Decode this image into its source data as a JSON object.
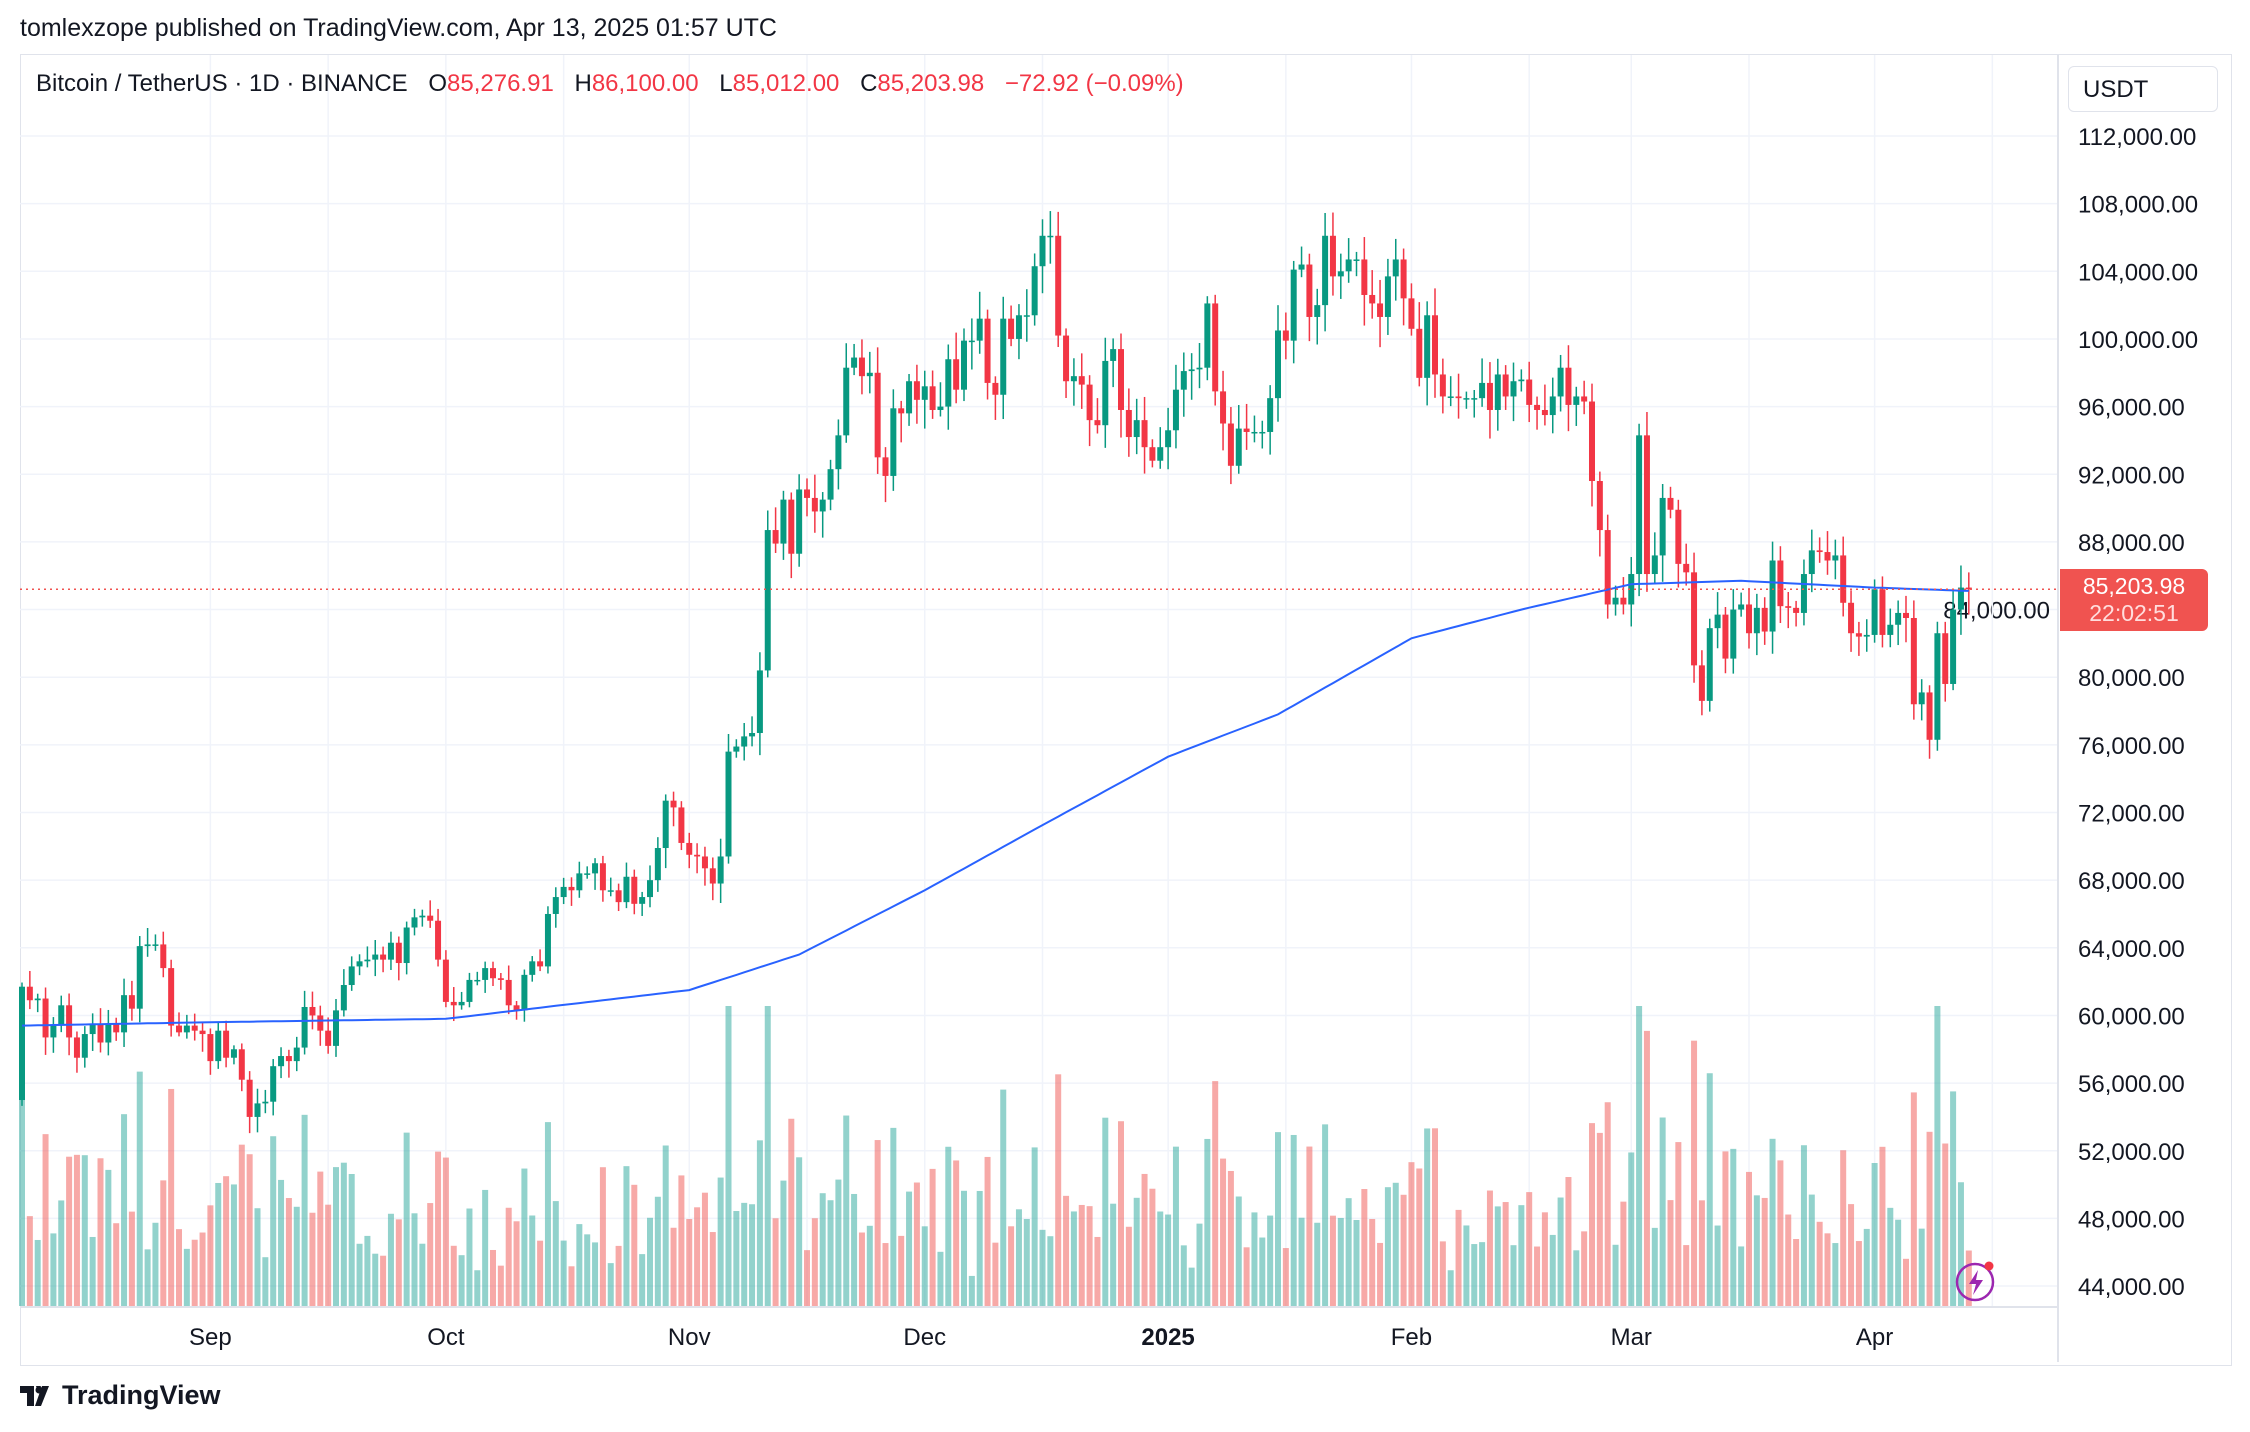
{
  "publish_line": "tomlexzope published on TradingView.com, Apr 13, 2025 01:57 UTC",
  "legend": {
    "symbol": "Bitcoin / TetherUS · 1D · BINANCE",
    "o_label": "O",
    "o": "85,276.91",
    "h_label": "H",
    "h": "86,100.00",
    "l_label": "L",
    "l": "85,012.00",
    "c_label": "C",
    "c": "85,203.98",
    "change": "−72.92 (−0.09%)"
  },
  "currency": "USDT",
  "last_price": {
    "price": "85,203.98",
    "countdown": "22:02:51"
  },
  "logo": "TradingView",
  "colors": {
    "up": "#089981",
    "down": "#f23645",
    "vol_up": "#26a69a",
    "vol_down": "#ef5350",
    "ma": "#2962ff",
    "last": "#f05350"
  },
  "chart_data": {
    "type": "candlestick",
    "title": "Bitcoin / TetherUS · 1D · BINANCE",
    "start_date": "2024-08-08",
    "first_open": 55.0,
    "closes_k": [
      61.7,
      60.9,
      61.0,
      58.7,
      59.4,
      60.6,
      58.7,
      57.5,
      58.9,
      59.5,
      58.4,
      59.5,
      59.0,
      61.2,
      60.4,
      64.1,
      64.2,
      64.2,
      62.8,
      59.4,
      59.0,
      59.4,
      59.1,
      58.9,
      57.3,
      59.1,
      57.5,
      58.0,
      56.2,
      54.0,
      54.8,
      54.9,
      57.0,
      57.6,
      57.3,
      58.1,
      60.5,
      60.0,
      59.1,
      58.2,
      60.3,
      61.8,
      62.9,
      63.2,
      63.3,
      63.6,
      63.3,
      64.3,
      63.1,
      65.2,
      65.8,
      65.9,
      65.6,
      63.3,
      60.8,
      60.6,
      60.8,
      62.1,
      62.1,
      62.8,
      62.2,
      62.1,
      60.6,
      60.3,
      62.4,
      63.2,
      62.9,
      66.0,
      67.0,
      67.6,
      67.4,
      68.4,
      68.4,
      69.0,
      67.4,
      67.4,
      66.7,
      68.2,
      66.6,
      67.0,
      68.0,
      69.9,
      72.7,
      72.3,
      70.2,
      69.5,
      69.4,
      68.7,
      67.8,
      69.4,
      75.6,
      75.9,
      76.5,
      76.7,
      80.4,
      88.7,
      87.9,
      90.5,
      87.3,
      91.1,
      90.6,
      89.8,
      90.5,
      92.3,
      94.3,
      98.3,
      98.9,
      97.8,
      98.0,
      93.0,
      91.9,
      95.9,
      95.6,
      97.5,
      96.4,
      97.2,
      95.8,
      96.0,
      98.8,
      97.0,
      99.9,
      99.9,
      101.2,
      97.4,
      96.7,
      101.2,
      100.0,
      101.4,
      101.4,
      104.3,
      106.1,
      106.1,
      100.2,
      97.5,
      97.8,
      97.3,
      95.2,
      94.9,
      98.7,
      99.4,
      95.8,
      94.2,
      95.2,
      93.6,
      92.8,
      93.6,
      94.6,
      97.0,
      98.1,
      98.2,
      98.3,
      102.1,
      96.9,
      95.0,
      92.5,
      94.7,
      94.5,
      94.5,
      94.5,
      96.5,
      100.5,
      99.9,
      104.1,
      104.4,
      101.3,
      102.0,
      106.1,
      103.7,
      104.0,
      104.7,
      104.7,
      102.6,
      102.1,
      101.3,
      103.7,
      104.7,
      102.4,
      100.6,
      97.7,
      101.4,
      97.9,
      96.6,
      96.6,
      96.5,
      96.5,
      96.5,
      97.4,
      95.8,
      97.9,
      96.6,
      97.5,
      97.6,
      96.1,
      95.8,
      95.5,
      96.6,
      98.3,
      96.1,
      96.6,
      96.3,
      91.6,
      88.7,
      84.3,
      84.7,
      84.3,
      86.1,
      94.3,
      86.1,
      87.2,
      90.6,
      89.9,
      86.7,
      86.2,
      80.7,
      78.6,
      82.9,
      83.7,
      81.1,
      84.0,
      84.3,
      82.6,
      84.1,
      82.7,
      86.9,
      84.2,
      84.1,
      83.8,
      86.1,
      87.5,
      87.4,
      86.9,
      87.2,
      84.4,
      82.6,
      82.4,
      82.5,
      85.2,
      82.5,
      83.1,
      83.8,
      83.5,
      78.4,
      79.1,
      76.3,
      82.6,
      79.6,
      84.0,
      85.3,
      85.2
    ],
    "ma_200_k": [
      [
        0,
        59.4
      ],
      [
        24,
        59.6
      ],
      [
        54,
        59.8
      ],
      [
        85,
        61.5
      ],
      [
        99,
        63.6
      ],
      [
        115,
        67.4
      ],
      [
        129,
        71.0
      ],
      [
        146,
        75.3
      ],
      [
        160,
        77.8
      ],
      [
        177,
        82.3
      ],
      [
        191,
        84.0
      ],
      [
        205,
        85.5
      ],
      [
        219,
        85.7
      ],
      [
        236,
        85.3
      ],
      [
        248,
        85.1
      ]
    ],
    "y_ticks": [
      "112,000.00",
      "108,000.00",
      "104,000.00",
      "100,000.00",
      "96,000.00",
      "92,000.00",
      "88,000.00",
      "84,000.00",
      "80,000.00",
      "76,000.00",
      "72,000.00",
      "68,000.00",
      "64,000.00",
      "60,000.00",
      "56,000.00",
      "52,000.00",
      "48,000.00",
      "44,000.00"
    ],
    "ylim": [
      44000,
      112000
    ],
    "x_ticks": [
      {
        "label": "Sep",
        "day": 24
      },
      {
        "label": "Oct",
        "day": 54
      },
      {
        "label": "Nov",
        "day": 85
      },
      {
        "label": "Dec",
        "day": 115
      },
      {
        "label": "2025",
        "day": 146,
        "bold": true
      },
      {
        "label": "Feb",
        "day": 177
      },
      {
        "label": "Mar",
        "day": 205
      },
      {
        "label": "Apr",
        "day": 236
      }
    ],
    "last_price": 85203.98,
    "grid": true
  }
}
